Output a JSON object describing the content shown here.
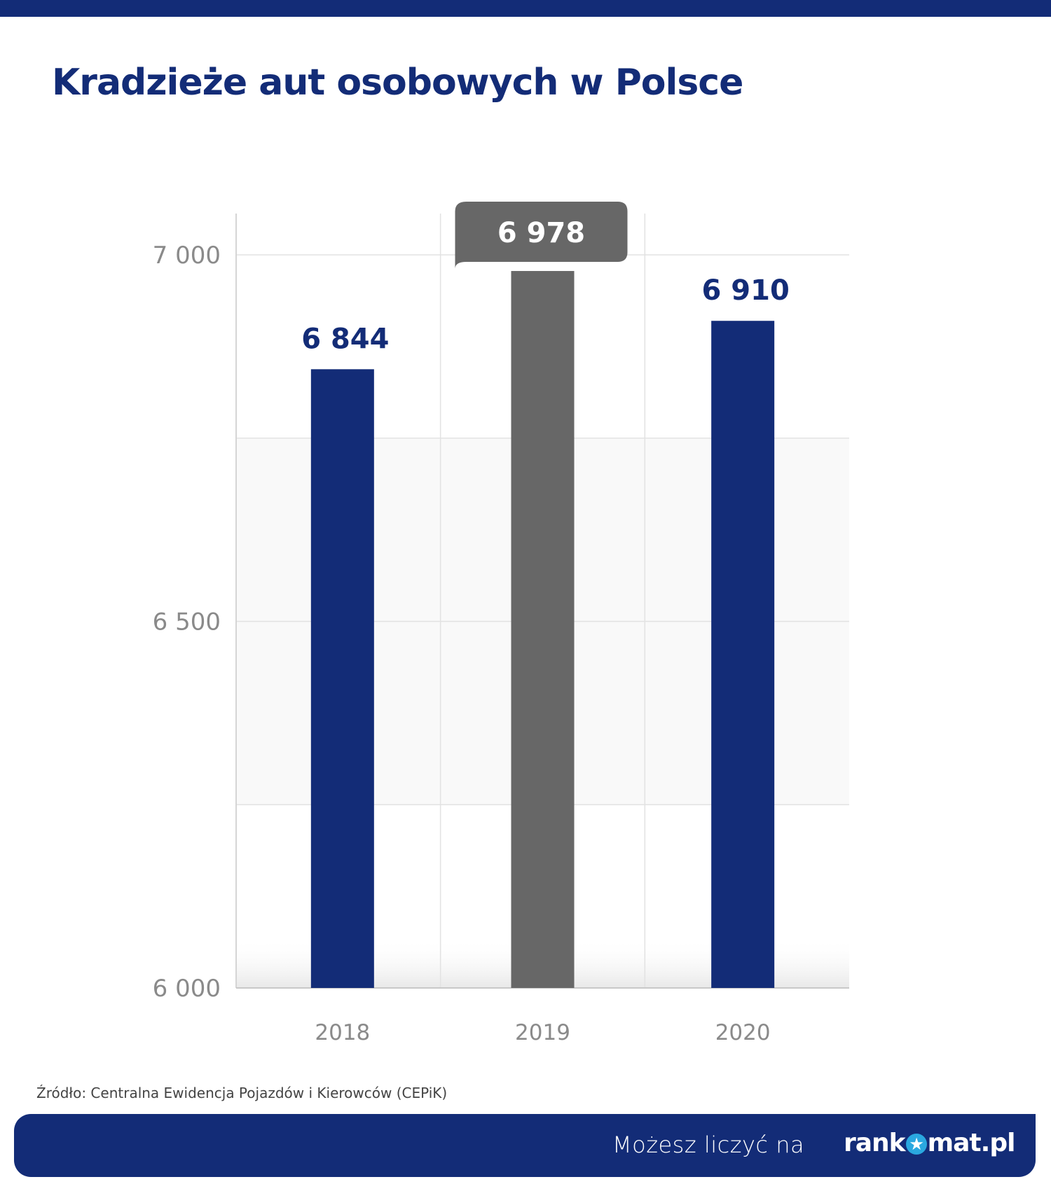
{
  "header": {
    "title": "Kradzieże aut osobowych w Polsce"
  },
  "chart_data": {
    "type": "bar",
    "title": "Kradzieże aut osobowych w Polsce",
    "categories": [
      "2018",
      "2019",
      "2020"
    ],
    "values": [
      6844,
      6978,
      6910
    ],
    "value_labels": [
      "6 844",
      "6 978",
      "6 910"
    ],
    "highlight_index": 1,
    "ylim": [
      6000,
      7000
    ],
    "yticks": [
      6000,
      6500,
      7000
    ],
    "ytick_labels": [
      "6 000",
      "6 500",
      "7 000"
    ],
    "grid": true,
    "xlabel": "",
    "ylabel": "",
    "colors": {
      "default": "#132c77",
      "highlight": "#676767"
    }
  },
  "source": "Źródło: Centralna Ewidencja Pojazdów i Kierowców (CEPiK)",
  "footer": {
    "tagline": "Możesz liczyć na",
    "logo_left": "rank",
    "logo_right": "mat.pl",
    "logo_star": "★"
  }
}
